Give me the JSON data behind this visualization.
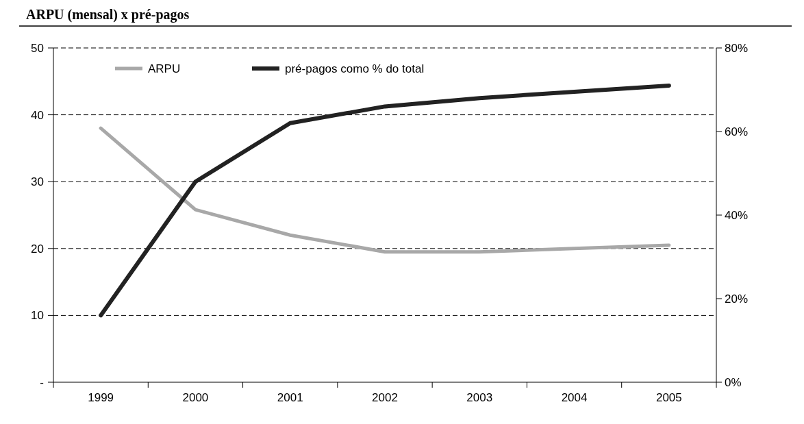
{
  "chart_data": {
    "type": "line",
    "title": "ARPU (mensal) x pré-pagos",
    "categories": [
      "1999",
      "2000",
      "2001",
      "2002",
      "2003",
      "2004",
      "2005"
    ],
    "series": [
      {
        "name": "ARPU",
        "color": "#a8a8a8",
        "values": [
          38,
          25.8,
          22,
          19.5,
          19.5,
          20,
          20.5
        ]
      },
      {
        "name": "pré-pagos como % do total",
        "color": "#222222",
        "axis": "y2",
        "values": [
          16,
          48,
          62,
          66,
          68,
          69.5,
          71
        ]
      }
    ],
    "ylim": [
      0,
      50
    ],
    "yticks": [
      {
        "value": 0,
        "label": "-"
      },
      10,
      20,
      30,
      40,
      50
    ],
    "y2lim": [
      0,
      80
    ],
    "y2ticks": [
      {
        "value": 0,
        "label": "0%"
      },
      {
        "value": 20,
        "label": "20%"
      },
      {
        "value": 40,
        "label": "40%"
      },
      {
        "value": 60,
        "label": "60%"
      },
      {
        "value": 80,
        "label": "80%"
      }
    ],
    "grid": "y",
    "line_style": "solid",
    "marker": "none",
    "legend": "top left"
  }
}
